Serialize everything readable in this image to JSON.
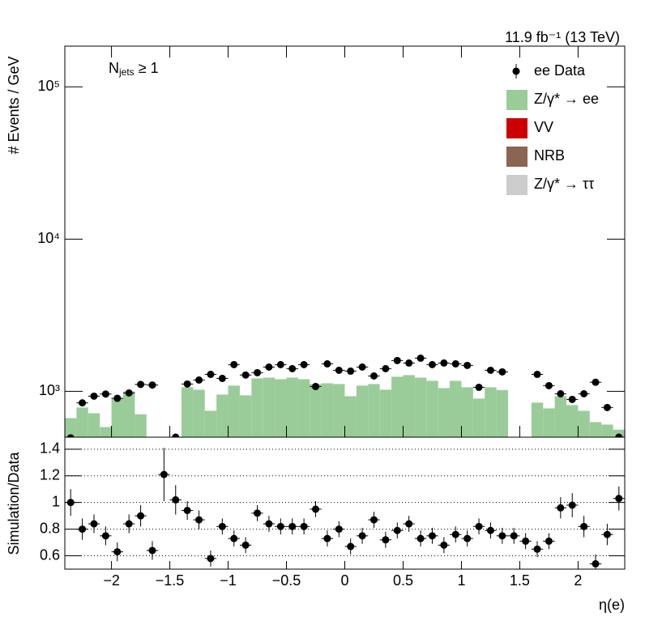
{
  "chart_data": [
    {
      "type": "histogram",
      "title": "11.9 fb⁻¹ (13 TeV)",
      "annotation": {
        "main": "N",
        "sub": "jets",
        "rest": " ≥ 1"
      },
      "y_label": "# Events / GeV",
      "bins": [
        -2.4,
        -2.3,
        -2.2,
        -2.1,
        -2,
        -1.9,
        -1.8,
        -1.7,
        -1.6,
        -1.5,
        -1.4,
        -1.3,
        -1.2,
        -1.1,
        -1,
        -0.9,
        -0.8,
        -0.7,
        -0.6,
        -0.5,
        -0.4,
        -0.3,
        -0.2,
        -0.1,
        0,
        0.1,
        0.2,
        0.3,
        0.4,
        0.5,
        0.6,
        0.7,
        0.8,
        0.9,
        1,
        1.1,
        1.2,
        1.3,
        1.4,
        1.5,
        1.6,
        1.7,
        1.8,
        1.9,
        2,
        2.1,
        2.2,
        2.3,
        2.4
      ],
      "series": [
        {
          "name": "ee Data",
          "color": "#000000",
          "style": "points",
          "values": [
            495,
            840,
            930,
            960,
            900,
            976,
            1110,
            1100,
            null,
            500,
            1117,
            1187,
            1293,
            1216,
            1498,
            1280,
            1326,
            1444,
            1498,
            1409,
            1498,
            1076,
            1516,
            1375,
            1358,
            1444,
            1262,
            1409,
            1593,
            1535,
            1652,
            1498,
            1535,
            1516,
            1480,
            1063,
            1375,
            1342,
            null,
            null,
            1293,
            1090,
            964,
            885,
            964,
            1147,
            783,
            500
          ]
        },
        {
          "name": "Z/γ* → ee",
          "color": "#99cc99",
          "style": "filled",
          "values": [
            667,
            783,
            718,
            583,
            907,
            1000,
            707,
            null,
            null,
            null,
            1063,
            1025,
            745,
            952,
            1090,
            941,
            1216,
            1231,
            1201,
            1231,
            1201,
            1117,
            1130,
            1117,
            929,
            1090,
            1117,
            1025,
            1247,
            1278,
            1231,
            1172,
            1050,
            1172,
            1063,
            896,
            1063,
            1020,
            null,
            null,
            843,
            773,
            929,
            812,
            745,
            628,
            605,
            560
          ]
        },
        {
          "name": "VV",
          "color": "#cc0000",
          "style": "filled"
        },
        {
          "name": "NRB",
          "color": "#8b6452",
          "style": "filled"
        },
        {
          "name": "Z/γ* → ττ",
          "color": "#cccccc",
          "style": "filled"
        }
      ],
      "xlim": [
        -2.4,
        2.4
      ],
      "ylim": [
        500,
        185000
      ],
      "log_y": true,
      "yticks": [
        {
          "value": 1000,
          "label": "10³"
        },
        {
          "value": 10000,
          "label": "10⁴"
        },
        {
          "value": 100000,
          "label": "10⁵"
        }
      ],
      "legend": "upper right"
    },
    {
      "type": "ratio",
      "y_label": "Simulation/Data",
      "x_label": "η(e)",
      "values": [
        1.0,
        0.8,
        0.84,
        0.75,
        0.63,
        0.84,
        0.9,
        0.64,
        1.21,
        1.02,
        0.94,
        0.87,
        0.58,
        0.82,
        0.73,
        0.68,
        0.92,
        0.84,
        0.82,
        0.82,
        0.82,
        0.95,
        0.73,
        0.8,
        0.67,
        0.75,
        0.87,
        0.72,
        0.79,
        0.84,
        0.73,
        0.75,
        0.68,
        0.76,
        0.73,
        0.82,
        0.79,
        0.75,
        0.75,
        0.71,
        0.65,
        0.71,
        0.96,
        0.98,
        0.82,
        0.54,
        0.76,
        1.03
      ],
      "errors": [
        0.1,
        0.08,
        0.07,
        0.07,
        0.07,
        0.07,
        0.08,
        0.07,
        0.2,
        0.11,
        0.07,
        0.07,
        0.06,
        0.06,
        0.06,
        0.06,
        0.06,
        0.06,
        0.06,
        0.06,
        0.06,
        0.06,
        0.06,
        0.06,
        0.06,
        0.06,
        0.06,
        0.06,
        0.06,
        0.06,
        0.06,
        0.06,
        0.06,
        0.06,
        0.06,
        0.06,
        0.06,
        0.06,
        0.06,
        0.06,
        0.06,
        0.06,
        0.08,
        0.09,
        0.08,
        0.07,
        0.08,
        0.09
      ],
      "xlim": [
        -2.4,
        2.4
      ],
      "xticks": [
        {
          "value": -2,
          "label": "−2"
        },
        {
          "value": -1.5,
          "label": "−1.5"
        },
        {
          "value": -1,
          "label": "−1"
        },
        {
          "value": -0.5,
          "label": "−0.5"
        },
        0,
        0.5,
        1,
        1.5,
        2
      ],
      "ylim": [
        0.5,
        1.49
      ],
      "yticks": [
        0.6,
        0.8,
        1,
        1.2,
        1.4
      ],
      "grid": true
    }
  ]
}
